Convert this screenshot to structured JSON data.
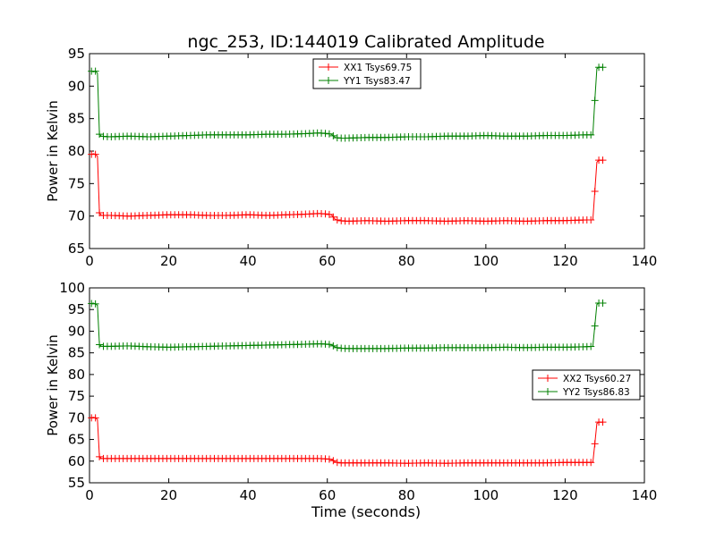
{
  "chart_data": [
    {
      "type": "line",
      "title": "ngc_253, ID:144019 Calibrated Amplitude",
      "xlabel": "",
      "ylabel": "Power in Kelvin",
      "xlim": [
        0,
        140
      ],
      "ylim": [
        65,
        95
      ],
      "xticks": [
        "0",
        "20",
        "40",
        "60",
        "80",
        "100",
        "120",
        "140"
      ],
      "yticks": [
        "65",
        "70",
        "75",
        "80",
        "85",
        "90",
        "95"
      ],
      "legend_position": "top-center",
      "series": [
        {
          "name": "XX1 Tsys69.75",
          "color": "#ff0000",
          "x": [
            0.5,
            1,
            1.5,
            2,
            2.5,
            3,
            5,
            10,
            15,
            20,
            25,
            30,
            35,
            40,
            45,
            50,
            55,
            58,
            60,
            61,
            62,
            63,
            65,
            70,
            75,
            80,
            85,
            90,
            95,
            100,
            105,
            110,
            115,
            120,
            125,
            127,
            127.5,
            128,
            128.5,
            129,
            129.5
          ],
          "y": [
            79.5,
            79.6,
            79.5,
            79.2,
            70.5,
            70.1,
            70.1,
            70.0,
            70.1,
            70.2,
            70.2,
            70.1,
            70.1,
            70.2,
            70.1,
            70.2,
            70.3,
            70.4,
            70.3,
            70.2,
            69.5,
            69.3,
            69.2,
            69.3,
            69.2,
            69.3,
            69.3,
            69.2,
            69.3,
            69.2,
            69.3,
            69.2,
            69.3,
            69.3,
            69.4,
            69.4,
            73.8,
            78.3,
            78.6,
            78.6,
            78.6
          ]
        },
        {
          "name": "YY1 Tsys83.47",
          "color": "#008000",
          "x": [
            0.5,
            1,
            1.5,
            2,
            2.5,
            3,
            5,
            10,
            15,
            20,
            25,
            30,
            35,
            40,
            45,
            50,
            55,
            58,
            60,
            61,
            62,
            63,
            65,
            70,
            75,
            80,
            85,
            90,
            95,
            100,
            105,
            110,
            115,
            120,
            125,
            127,
            127.5,
            128,
            128.5,
            129,
            129.5
          ],
          "y": [
            92.3,
            92.2,
            92.3,
            92.0,
            82.6,
            82.3,
            82.2,
            82.3,
            82.2,
            82.3,
            82.4,
            82.5,
            82.5,
            82.5,
            82.6,
            82.6,
            82.7,
            82.8,
            82.7,
            82.6,
            82.1,
            82.0,
            82.0,
            82.1,
            82.1,
            82.2,
            82.2,
            82.3,
            82.3,
            82.4,
            82.3,
            82.3,
            82.4,
            82.4,
            82.5,
            82.5,
            87.8,
            92.7,
            92.9,
            92.9,
            92.9
          ]
        }
      ]
    },
    {
      "type": "line",
      "title": "",
      "xlabel": "Time (seconds)",
      "ylabel": "Power in Kelvin",
      "xlim": [
        0,
        140
      ],
      "ylim": [
        55,
        100
      ],
      "xticks": [
        "0",
        "20",
        "40",
        "60",
        "80",
        "100",
        "120",
        "140"
      ],
      "yticks": [
        "55",
        "60",
        "65",
        "70",
        "75",
        "80",
        "85",
        "90",
        "95",
        "100"
      ],
      "legend_position": "center-right",
      "series": [
        {
          "name": "XX2 Tsys60.27",
          "color": "#ff0000",
          "x": [
            0.5,
            1,
            1.5,
            2,
            2.5,
            3,
            5,
            10,
            15,
            20,
            25,
            30,
            35,
            40,
            45,
            50,
            55,
            58,
            60,
            61,
            62,
            63,
            65,
            70,
            75,
            80,
            85,
            90,
            95,
            100,
            105,
            110,
            115,
            120,
            125,
            127,
            127.5,
            128,
            128.5,
            129,
            129.5
          ],
          "y": [
            70.0,
            70.1,
            70.0,
            69.6,
            61.0,
            60.6,
            60.6,
            60.6,
            60.6,
            60.6,
            60.6,
            60.6,
            60.6,
            60.6,
            60.6,
            60.6,
            60.6,
            60.6,
            60.5,
            60.4,
            59.8,
            59.6,
            59.6,
            59.6,
            59.6,
            59.5,
            59.6,
            59.5,
            59.6,
            59.6,
            59.6,
            59.6,
            59.6,
            59.7,
            59.7,
            59.7,
            64.0,
            68.7,
            69.0,
            69.0,
            69.0
          ]
        },
        {
          "name": "YY2 Tsys86.83",
          "color": "#008000",
          "x": [
            0.5,
            1,
            1.5,
            2,
            2.5,
            3,
            5,
            10,
            15,
            20,
            25,
            30,
            35,
            40,
            45,
            50,
            55,
            58,
            60,
            61,
            62,
            63,
            65,
            70,
            75,
            80,
            85,
            90,
            95,
            100,
            105,
            110,
            115,
            120,
            125,
            127,
            127.5,
            128,
            128.5,
            129,
            129.5
          ],
          "y": [
            96.4,
            96.5,
            96.3,
            96.0,
            86.9,
            86.5,
            86.5,
            86.6,
            86.4,
            86.3,
            86.4,
            86.5,
            86.6,
            86.7,
            86.8,
            86.9,
            87.0,
            87.1,
            87.0,
            86.9,
            86.3,
            86.1,
            86.0,
            86.0,
            86.0,
            86.1,
            86.1,
            86.2,
            86.2,
            86.2,
            86.3,
            86.2,
            86.3,
            86.3,
            86.4,
            86.5,
            91.2,
            96.2,
            96.5,
            96.5,
            96.5
          ]
        }
      ]
    }
  ]
}
